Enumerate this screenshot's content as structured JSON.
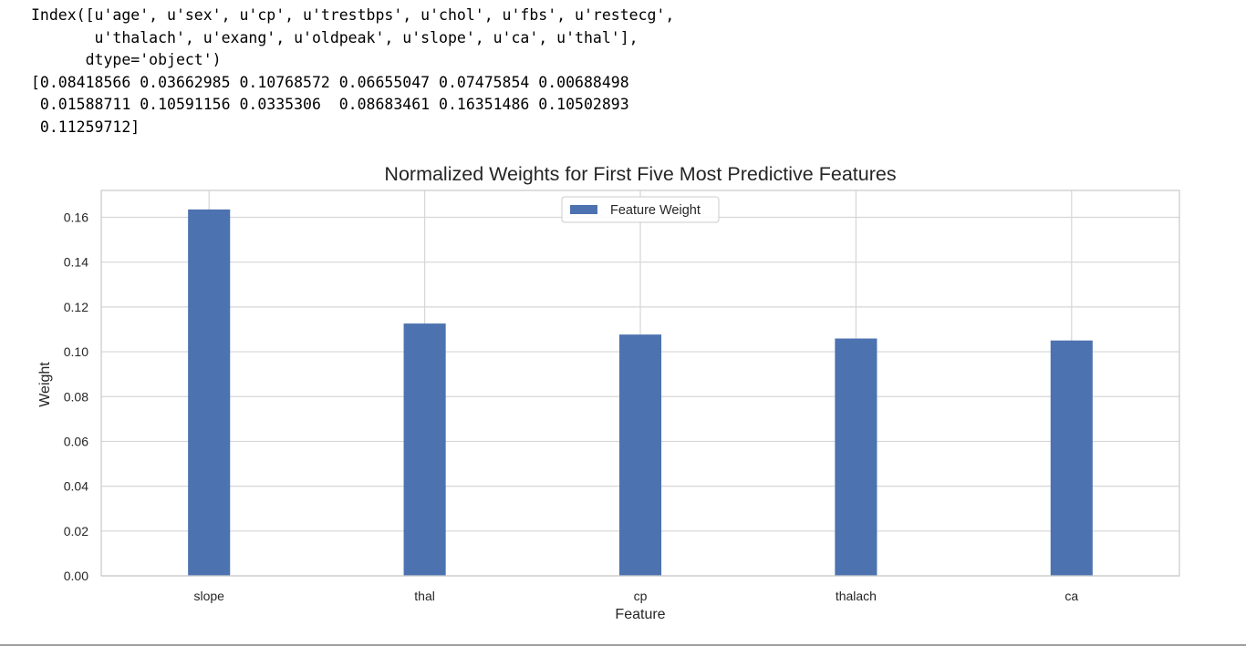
{
  "output": {
    "lines": [
      "Index([u'age', u'sex', u'cp', u'trestbps', u'chol', u'fbs', u'restecg',",
      "       u'thalach', u'exang', u'oldpeak', u'slope', u'ca', u'thal'],",
      "      dtype='object')",
      "[0.08418566 0.03662985 0.10768572 0.06655047 0.07475854 0.00688498",
      " 0.01588711 0.10591156 0.0335306  0.08683461 0.16351486 0.10502893",
      " 0.11259712]"
    ]
  },
  "chart_data": {
    "type": "bar",
    "title": "Normalized Weights for First Five Most Predictive Features",
    "xlabel": "Feature",
    "ylabel": "Weight",
    "categories": [
      "slope",
      "thal",
      "cp",
      "thalach",
      "ca"
    ],
    "series": [
      {
        "name": "Feature Weight",
        "values": [
          0.16351486,
          0.11259712,
          0.10768572,
          0.10591156,
          0.10502893
        ],
        "color": "#4c72b0"
      }
    ],
    "ylim": [
      0,
      0.172
    ],
    "yticks": [
      0.0,
      0.02,
      0.04,
      0.06,
      0.08,
      0.1,
      0.12,
      0.14,
      0.16
    ],
    "ytick_labels": [
      "0.00",
      "0.02",
      "0.04",
      "0.06",
      "0.08",
      "0.10",
      "0.12",
      "0.14",
      "0.16"
    ],
    "grid": true,
    "legend": "upper center",
    "colors": {
      "bar": "#4c72b0",
      "grid": "#d6d6d6",
      "frame": "#cccccc",
      "text": "#262626"
    }
  }
}
